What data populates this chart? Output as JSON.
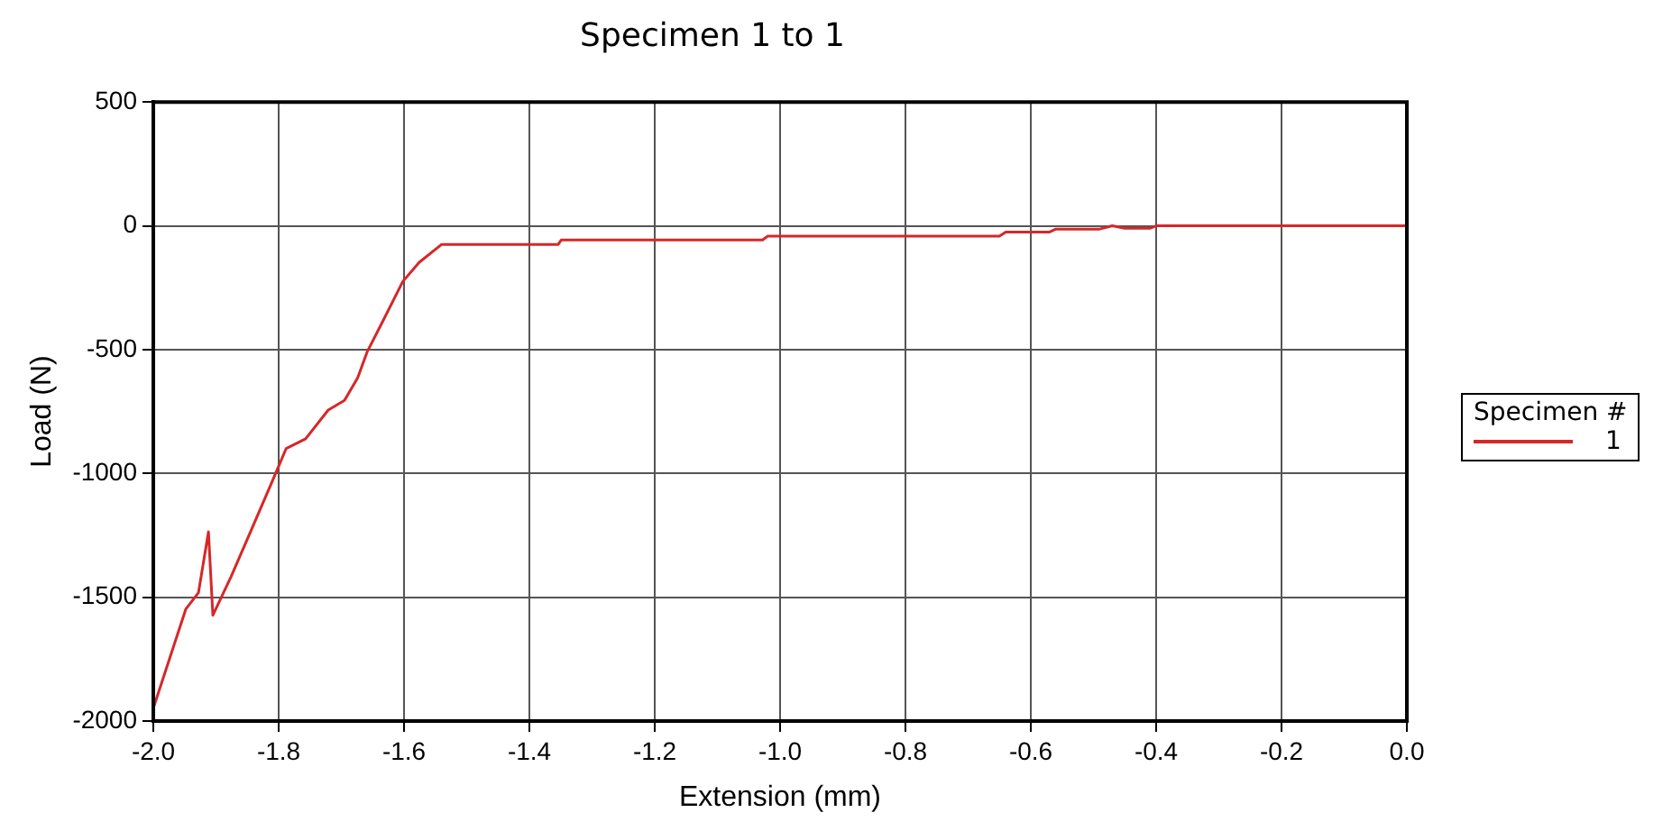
{
  "chart_data": {
    "type": "line",
    "title": "Specimen 1 to 1",
    "xlabel": "Extension (mm)",
    "ylabel": "Load (N)",
    "legend_title": "Specimen #",
    "legend": "right",
    "grid": true,
    "marker": "none",
    "line_style": "solid",
    "xlim": [
      -2.0,
      0.0
    ],
    "xticks": [
      {
        "value": -2,
        "label": "-2.0"
      },
      -1.8,
      -1.6,
      -1.4,
      -1.2,
      {
        "value": -1,
        "label": "-1.0"
      },
      -0.8,
      -0.6,
      -0.4,
      -0.2,
      {
        "value": 0,
        "label": "0.0"
      }
    ],
    "ylim": [
      -2000,
      500
    ],
    "yticks": [
      -2000,
      -1500,
      -1000,
      -500,
      0,
      500
    ],
    "series": [
      {
        "name": "1",
        "color": "#d62728",
        "x": [
          -2.0,
          -1.948,
          -1.928,
          -1.912,
          -1.905,
          -1.876,
          -1.845,
          -1.814,
          -1.788,
          -1.757,
          -1.721,
          -1.695,
          -1.674,
          -1.659,
          -1.633,
          -1.602,
          -1.576,
          -1.54,
          -1.354,
          -1.349,
          -1.028,
          -1.02,
          -0.65,
          -0.64,
          -0.57,
          -0.56,
          -0.49,
          -0.47,
          -0.45,
          -0.41,
          -0.4,
          0.0
        ],
        "values": [
          -1948,
          -1547,
          -1482,
          -1236,
          -1573,
          -1417,
          -1236,
          -1054,
          -899,
          -860,
          -744,
          -705,
          -614,
          -510,
          -381,
          -225,
          -148,
          -75,
          -75,
          -57,
          -57,
          -42,
          -42,
          -25,
          -25,
          -13,
          -13,
          0,
          -10,
          -10,
          0,
          0
        ]
      }
    ]
  }
}
